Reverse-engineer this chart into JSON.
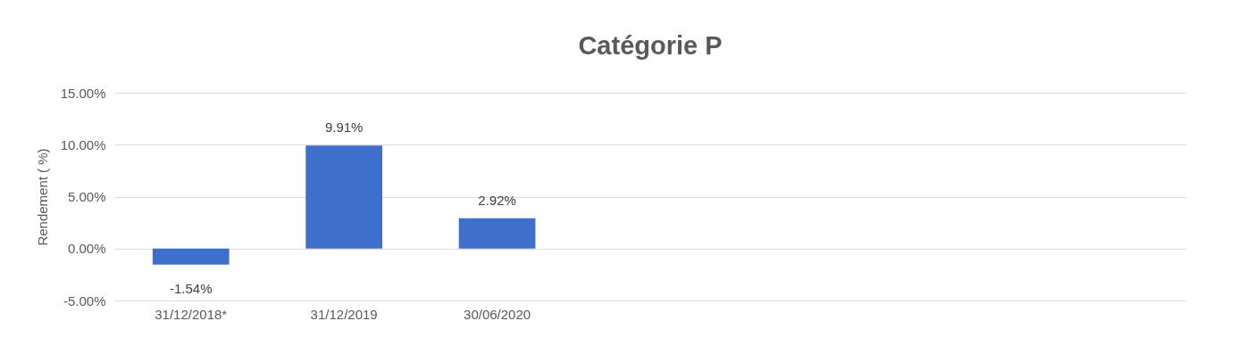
{
  "chart_data": {
    "type": "bar",
    "title": "Catégorie P",
    "ylabel": "Rendement ( %)",
    "categories": [
      "31/12/2018*",
      "31/12/2019",
      "30/06/2020",
      null,
      null,
      null,
      null
    ],
    "values": [
      -1.54,
      9.91,
      2.92,
      null,
      null,
      null,
      null
    ],
    "value_labels": [
      "-1.54%",
      "9.91%",
      "2.92%",
      null,
      null,
      null,
      null
    ],
    "color": "#3e6fcc",
    "ylim": [
      -5,
      15
    ],
    "yticks": [
      {
        "value": -5,
        "label": "-5.00%"
      },
      {
        "value": 0,
        "label": "0.00%"
      },
      {
        "value": 5,
        "label": "5.00%"
      },
      {
        "value": 10,
        "label": "10.00%"
      },
      {
        "value": 15,
        "label": "15.00%"
      }
    ],
    "grid": "y"
  }
}
